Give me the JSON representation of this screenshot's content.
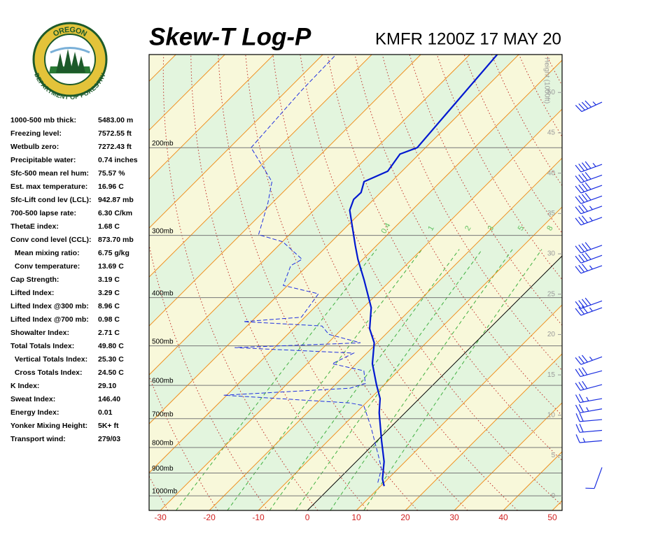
{
  "logo": {
    "top": "OREGON",
    "bottom": "DEPARTMENT OF FORESTRY"
  },
  "indices": [
    {
      "label": "1000-500 mb thick:",
      "value": "5483.00 m"
    },
    {
      "label": "Freezing level:",
      "value": "7572.55 ft"
    },
    {
      "label": "Wetbulb zero:",
      "value": "7272.43 ft"
    },
    {
      "label": "Precipitable water:",
      "value": "0.74 inches"
    },
    {
      "label": "Sfc-500 mean rel hum:",
      "value": "75.57 %"
    },
    {
      "label": "Est. max temperature:",
      "value": "16.96 C"
    },
    {
      "label": "Sfc-Lift cond lev (LCL):",
      "value": "942.87 mb"
    },
    {
      "label": "700-500 lapse rate:",
      "value": "6.30 C/km"
    },
    {
      "label": "ThetaE index:",
      "value": "1.68 C"
    },
    {
      "label": "Conv cond level (CCL):",
      "value": "873.70 mb"
    },
    {
      "label": "  Mean mixing ratio:",
      "value": "6.75 g/kg"
    },
    {
      "label": "  Conv temperature:",
      "value": "13.69 C"
    },
    {
      "label": "Cap Strength:",
      "value": "3.19 C"
    },
    {
      "label": "Lifted Index:",
      "value": "3.29 C"
    },
    {
      "label": "Lifted Index @300 mb:",
      "value": "8.96 C"
    },
    {
      "label": "Lifted Index @700 mb:",
      "value": "0.98 C"
    },
    {
      "label": "Showalter Index:",
      "value": "2.71 C"
    },
    {
      "label": "Total Totals Index:",
      "value": "49.80 C"
    },
    {
      "label": "  Vertical Totals Index:",
      "value": "25.30 C"
    },
    {
      "label": "  Cross Totals Index:",
      "value": "24.50 C"
    },
    {
      "label": "K Index:",
      "value": "29.10"
    },
    {
      "label": "Sweat Index:",
      "value": "146.40"
    },
    {
      "label": "Energy Index:",
      "value": "0.01"
    },
    {
      "label": "Yonker Mixing Height:",
      "value": "5K+ ft"
    },
    {
      "label": "Transport wind:",
      "value": "279/03"
    }
  ],
  "chart_data": {
    "type": "skewt",
    "title": "Skew-T Log-P",
    "subtitle": "KMFR 1200Z 17 MAY 20",
    "xlim": [
      -32.3,
      52
    ],
    "xticks": [
      -30,
      -20,
      -10,
      0,
      10,
      20,
      30,
      40,
      50
    ],
    "ylim": [
      1070,
      130
    ],
    "log_y": true,
    "yticks": [
      {
        "value": 200,
        "label": "200mb"
      },
      {
        "value": 300,
        "label": "300mb"
      },
      {
        "value": 400,
        "label": "400mb"
      },
      {
        "value": 500,
        "label": "500mb"
      },
      {
        "value": 600,
        "label": "600mb"
      },
      {
        "value": 700,
        "label": "700mb"
      },
      {
        "value": 800,
        "label": "800mb"
      },
      {
        "value": 900,
        "label": "900mb"
      },
      {
        "value": 1000,
        "label": "1000mb"
      }
    ],
    "y2label": "Height (1000ft)",
    "y2lim": [
      -1.8,
      54.7
    ],
    "y2ticks": [
      0,
      5,
      10,
      15,
      20,
      25,
      30,
      35,
      40,
      45,
      50
    ],
    "mixing_ratios": [
      {
        "value": 0.4,
        "label": "0.4"
      },
      1,
      2,
      3,
      5,
      8
    ],
    "series": [
      {
        "color": "#0018d0",
        "dash": false,
        "pressure": [
          956,
          925,
          854,
          775,
          681,
          638,
          598,
          543,
          493,
          462,
          419,
          368,
          335,
          314,
          267,
          254,
          246,
          234,
          223,
          206,
          200,
          130
        ],
        "values": [
          10.7,
          8.9,
          5.7,
          0.9,
          -5.3,
          -8.0,
          -11.6,
          -16.7,
          -20.6,
          -24.4,
          -28.4,
          -35.6,
          -41.0,
          -44.4,
          -52.7,
          -54.1,
          -54.0,
          -55.6,
          -52.9,
          -53.9,
          -51.7,
          -54.4
        ]
      },
      {
        "color": "#2030e0",
        "dash": true,
        "pressure": [
          941,
          882,
          826,
          727,
          659,
          651,
          628,
          608,
          595,
          561,
          543,
          517,
          504,
          493,
          474,
          456,
          447,
          438,
          393,
          378,
          345,
          335,
          309,
          299,
          258,
          234,
          200,
          154,
          130
        ],
        "values": [
          8.7,
          6.6,
          3.0,
          -4.1,
          -9.9,
          -13.3,
          -40.6,
          -16.3,
          -14.1,
          -17.0,
          -24.9,
          -22.7,
          -48.1,
          -23.4,
          -31.6,
          -34.7,
          -51.6,
          -40.7,
          -42.0,
          -50.9,
          -53.4,
          -52.4,
          -59.9,
          -66.3,
          -70.9,
          -74.4,
          -85.6,
          -87.0,
          -87.3
        ]
      }
    ],
    "winds": {
      "pressure": [
        162,
        216,
        227,
        238,
        250,
        262,
        276,
        314,
        329,
        345,
        406,
        419,
        526,
        561,
        598,
        638,
        669,
        703,
        739,
        775,
        877
      ],
      "direction": [
        245,
        250,
        250,
        250,
        250,
        250,
        250,
        250,
        250,
        250,
        250,
        250,
        250,
        255,
        255,
        260,
        260,
        265,
        265,
        265,
        200
      ],
      "speed": [
        45,
        45,
        40,
        40,
        40,
        35,
        35,
        40,
        40,
        35,
        40,
        35,
        35,
        30,
        30,
        25,
        25,
        20,
        20,
        15,
        10
      ]
    }
  }
}
